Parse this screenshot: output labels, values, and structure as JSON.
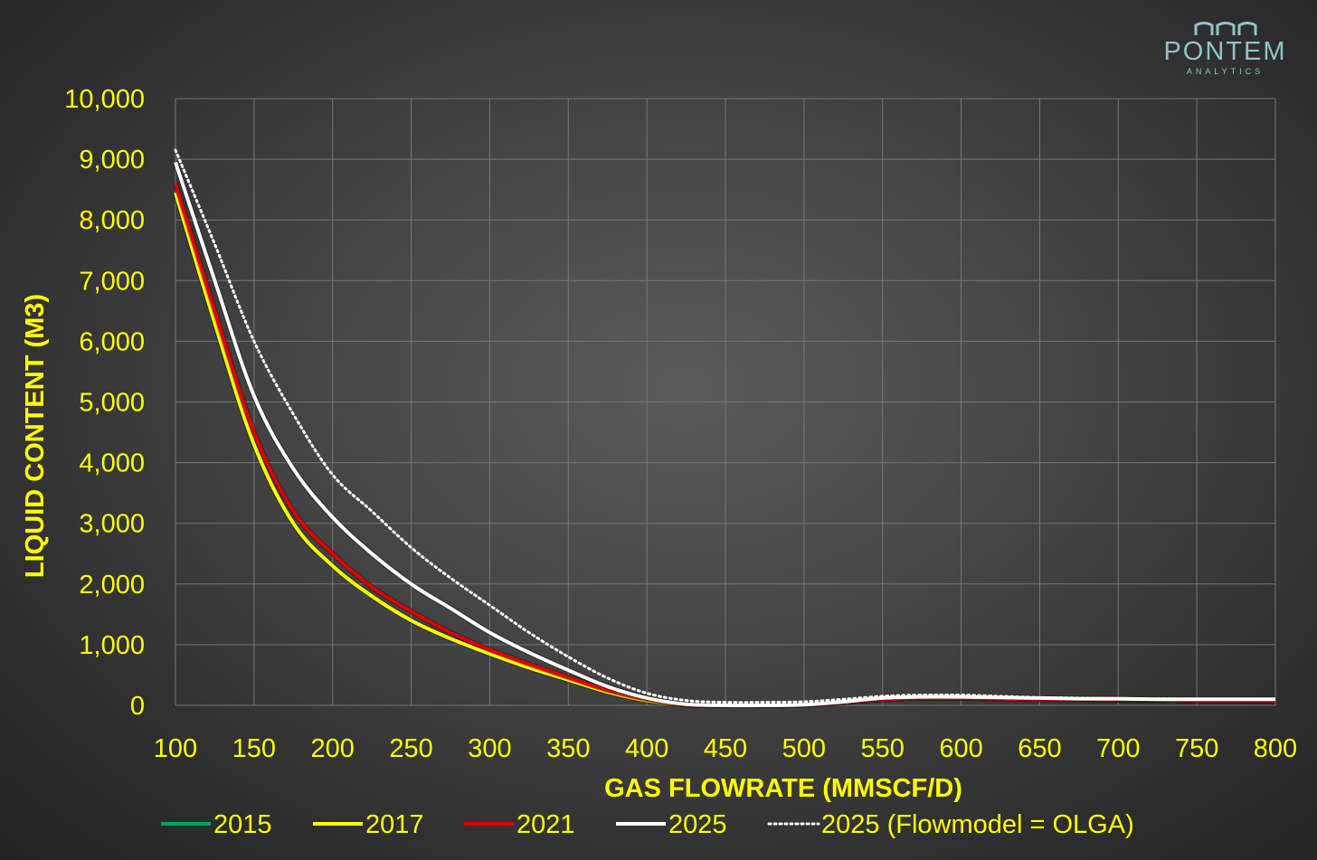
{
  "logo": {
    "name": "PONTEM",
    "sub": "ANALYTICS"
  },
  "chart_data": {
    "type": "line",
    "xlabel": "GAS FLOWRATE (MMSCF/D)",
    "ylabel": "LIQUID CONTENT (M3)",
    "xlim": [
      100,
      800
    ],
    "ylim": [
      0,
      10000
    ],
    "x_ticks": [
      "100",
      "150",
      "200",
      "250",
      "300",
      "350",
      "400",
      "450",
      "500",
      "550",
      "600",
      "650",
      "700",
      "750",
      "800"
    ],
    "y_ticks": [
      "0",
      "1,000",
      "2,000",
      "3,000",
      "4,000",
      "5,000",
      "6,000",
      "7,000",
      "8,000",
      "9,000",
      "10,000"
    ],
    "grid": true,
    "legend_position": "bottom",
    "colors": {
      "axis_text": "#ffff00",
      "2015": "#00a650",
      "2017": "#ffff00",
      "2021": "#e00000",
      "2025": "#ffffff",
      "olga": "#ffffff"
    },
    "x": [
      100,
      125,
      150,
      175,
      200,
      225,
      250,
      275,
      300,
      325,
      350,
      375,
      400,
      425,
      450,
      475,
      500,
      525,
      550,
      575,
      600,
      625,
      650,
      675,
      700,
      725,
      750,
      775,
      800
    ],
    "series": [
      {
        "name": "2015",
        "key": "2015",
        "dashed": false,
        "values": [
          8450,
          6300,
          4300,
          3000,
          2300,
          1800,
          1400,
          1100,
          850,
          620,
          420,
          220,
          80,
          10,
          0,
          0,
          10,
          50,
          100,
          120,
          120,
          110,
          100,
          100,
          90,
          90,
          80,
          80,
          80
        ]
      },
      {
        "name": "2017",
        "key": "2017",
        "dashed": false,
        "values": [
          8450,
          6300,
          4300,
          3000,
          2300,
          1800,
          1400,
          1100,
          850,
          620,
          420,
          220,
          80,
          10,
          0,
          0,
          10,
          50,
          100,
          120,
          120,
          110,
          100,
          100,
          90,
          90,
          80,
          80,
          80
        ]
      },
      {
        "name": "2021",
        "key": "2021",
        "dashed": false,
        "values": [
          8600,
          6500,
          4500,
          3200,
          2500,
          1950,
          1550,
          1200,
          920,
          680,
          460,
          250,
          100,
          10,
          0,
          0,
          10,
          50,
          100,
          120,
          120,
          110,
          100,
          100,
          90,
          90,
          80,
          80,
          80
        ]
      },
      {
        "name": "2025",
        "key": "2025",
        "dashed": false,
        "values": [
          8950,
          7000,
          5100,
          3900,
          3100,
          2500,
          2000,
          1600,
          1200,
          870,
          580,
          310,
          120,
          20,
          0,
          0,
          10,
          60,
          120,
          140,
          140,
          130,
          120,
          110,
          110,
          100,
          100,
          100,
          100
        ]
      },
      {
        "name": "2025 (Flowmodel = OLGA)",
        "key": "olga",
        "dashed": true,
        "values": [
          9150,
          7600,
          6000,
          4800,
          3800,
          3200,
          2600,
          2100,
          1650,
          1200,
          800,
          450,
          200,
          80,
          50,
          50,
          60,
          100,
          150,
          170,
          170,
          150,
          130,
          120,
          110,
          110,
          100,
          100,
          100
        ]
      }
    ]
  }
}
